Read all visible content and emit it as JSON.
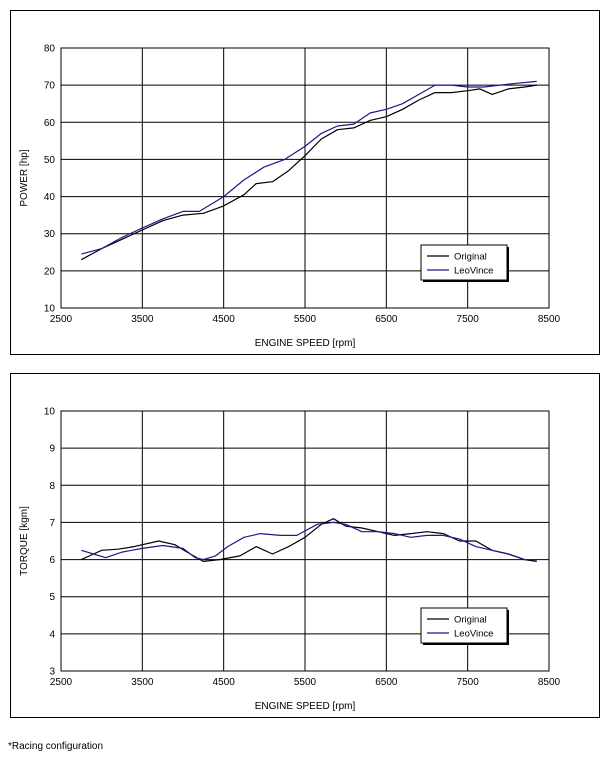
{
  "chart_data": [
    {
      "type": "line",
      "xlabel": "ENGINE SPEED [rpm]",
      "ylabel": "POWER [hp]",
      "xlim": [
        2500,
        8500
      ],
      "ylim": [
        10,
        80
      ],
      "xticks": [
        2500,
        3500,
        4500,
        5500,
        6500,
        7500,
        8500
      ],
      "yticks": [
        10,
        20,
        30,
        40,
        50,
        60,
        70,
        80
      ],
      "grid": true,
      "legend": "bottom-right",
      "series": [
        {
          "name": "Original",
          "color": "#000000",
          "x": [
            2750,
            3000,
            3250,
            3500,
            3750,
            4000,
            4250,
            4500,
            4750,
            4900,
            5100,
            5300,
            5500,
            5700,
            5900,
            6100,
            6300,
            6500,
            6700,
            6900,
            7100,
            7300,
            7500,
            7650,
            7800,
            8000,
            8200,
            8350
          ],
          "y": [
            23,
            26,
            28.5,
            31,
            33.5,
            35,
            35.5,
            37.5,
            40.5,
            43.5,
            44,
            47,
            51,
            55.5,
            58,
            58.5,
            60.5,
            61.5,
            63.5,
            66,
            68,
            68,
            68.5,
            69,
            67.5,
            69,
            69.5,
            70
          ]
        },
        {
          "name": "LeoVince",
          "color": "#1a1a8c",
          "x": [
            2750,
            3000,
            3250,
            3500,
            3750,
            4000,
            4200,
            4500,
            4750,
            5000,
            5250,
            5500,
            5700,
            5900,
            6100,
            6300,
            6500,
            6700,
            6900,
            7100,
            7300,
            7500,
            7700,
            7900,
            8100,
            8350
          ],
          "y": [
            24.5,
            26,
            29,
            31.5,
            34,
            36,
            36,
            40,
            44.5,
            48,
            50,
            53.5,
            57,
            59,
            59.5,
            62.5,
            63.5,
            65,
            67.5,
            70,
            70,
            69.5,
            69.5,
            70,
            70.5,
            71
          ]
        }
      ]
    },
    {
      "type": "line",
      "xlabel": "ENGINE SPEED [rpm]",
      "ylabel": "TORQUE [kgm]",
      "xlim": [
        2500,
        8500
      ],
      "ylim": [
        3,
        10
      ],
      "xticks": [
        2500,
        3500,
        4500,
        5500,
        6500,
        7500,
        8500
      ],
      "yticks": [
        3,
        4,
        5,
        6,
        7,
        8,
        9,
        10
      ],
      "grid": true,
      "legend": "bottom-right",
      "series": [
        {
          "name": "Original",
          "color": "#000000",
          "x": [
            2750,
            2900,
            3000,
            3200,
            3400,
            3700,
            3900,
            4050,
            4250,
            4450,
            4700,
            4900,
            5100,
            5300,
            5500,
            5700,
            5850,
            6000,
            6200,
            6400,
            6600,
            6800,
            7000,
            7200,
            7400,
            7600,
            7800,
            8000,
            8200,
            8350
          ],
          "y": [
            6.0,
            6.15,
            6.25,
            6.28,
            6.35,
            6.5,
            6.4,
            6.2,
            5.95,
            6.0,
            6.1,
            6.35,
            6.15,
            6.35,
            6.6,
            6.95,
            7.1,
            6.9,
            6.85,
            6.75,
            6.65,
            6.7,
            6.75,
            6.7,
            6.5,
            6.5,
            6.25,
            6.15,
            6.0,
            5.95
          ]
        },
        {
          "name": "LeoVince",
          "color": "#1a1a8c",
          "x": [
            2750,
            2900,
            3050,
            3250,
            3500,
            3750,
            4000,
            4150,
            4250,
            4400,
            4550,
            4750,
            4950,
            5200,
            5400,
            5650,
            5850,
            6000,
            6200,
            6400,
            6600,
            6800,
            7000,
            7200,
            7400,
            7600,
            7800,
            8000,
            8200,
            8350
          ],
          "y": [
            6.25,
            6.15,
            6.05,
            6.2,
            6.3,
            6.38,
            6.3,
            6.05,
            6.0,
            6.1,
            6.35,
            6.6,
            6.7,
            6.65,
            6.65,
            6.95,
            7.0,
            6.95,
            6.75,
            6.75,
            6.7,
            6.6,
            6.65,
            6.65,
            6.55,
            6.35,
            6.25,
            6.15,
            6.0,
            6.0
          ]
        }
      ]
    }
  ],
  "footnote": "*Racing configuration"
}
